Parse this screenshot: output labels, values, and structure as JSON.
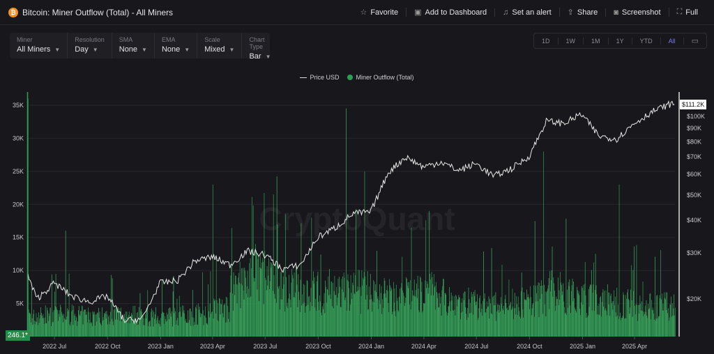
{
  "header": {
    "coin_icon": "bitcoin-icon",
    "title": "Bitcoin: Miner Outflow (Total) - All Miners",
    "actions": [
      {
        "label": "Favorite",
        "icon": "star-icon"
      },
      {
        "label": "Add to Dashboard",
        "icon": "folder-plus-icon"
      },
      {
        "label": "Set an alert",
        "icon": "bell-icon"
      },
      {
        "label": "Share",
        "icon": "share-icon"
      },
      {
        "label": "Screenshot",
        "icon": "camera-icon"
      },
      {
        "label": "Full",
        "icon": "fullscreen-icon"
      }
    ]
  },
  "controls": [
    {
      "label": "Miner",
      "value": "All Miners"
    },
    {
      "label": "Resolution",
      "value": "Day"
    },
    {
      "label": "SMA",
      "value": "None"
    },
    {
      "label": "EMA",
      "value": "None"
    },
    {
      "label": "Scale",
      "value": "Mixed"
    },
    {
      "label": "Chart Type",
      "value": "Bar"
    }
  ],
  "ranges": [
    "1D",
    "1W",
    "1M",
    "1Y",
    "YTD",
    "All"
  ],
  "active_range": "All",
  "legend": {
    "price": "Price USD",
    "outflow": "Miner Outflow (Total)"
  },
  "watermark": "CryptoQuant",
  "current_outflow": "246.1*",
  "current_price": "$111.2K",
  "colors": {
    "bar": "#2f9e55",
    "price": "#e8e8e8",
    "accent": "#7b7bf0"
  },
  "chart_data": {
    "type": "bar",
    "title": "Bitcoin: Miner Outflow (Total) - All Miners",
    "left_ticks": [
      "5K",
      "10K",
      "15K",
      "20K",
      "25K",
      "30K",
      "35K"
    ],
    "left_tick_values": [
      5000,
      10000,
      15000,
      20000,
      25000,
      30000,
      35000
    ],
    "right_ticks": [
      "$20K",
      "$30K",
      "$40K",
      "$50K",
      "$60K",
      "$70K",
      "$80K",
      "$90K",
      "$100K"
    ],
    "right_tick_values": [
      20000,
      30000,
      40000,
      50000,
      60000,
      70000,
      80000,
      90000,
      100000
    ],
    "x_ticks": [
      "2022 Jul",
      "2022 Oct",
      "2023 Jan",
      "2023 Apr",
      "2023 Jul",
      "2023 Oct",
      "2024 Jan",
      "2024 Apr",
      "2024 Jul",
      "2024 Oct",
      "2025 Jan",
      "2025 Apr"
    ],
    "x_range": [
      "2022-05-16",
      "2025-06-10"
    ],
    "outflow_ylim": [
      0,
      37000
    ],
    "price_scale": "log",
    "months": [
      "2022-05",
      "2022-06",
      "2022-07",
      "2022-08",
      "2022-09",
      "2022-10",
      "2022-11",
      "2022-12",
      "2023-01",
      "2023-02",
      "2023-03",
      "2023-04",
      "2023-05",
      "2023-06",
      "2023-07",
      "2023-08",
      "2023-09",
      "2023-10",
      "2023-11",
      "2023-12",
      "2024-01",
      "2024-02",
      "2024-03",
      "2024-04",
      "2024-05",
      "2024-06",
      "2024-07",
      "2024-08",
      "2024-09",
      "2024-10",
      "2024-11",
      "2024-12",
      "2025-01",
      "2025-02",
      "2025-03",
      "2025-04",
      "2025-05",
      "2025-06"
    ],
    "outflow_typical": [
      3200,
      3500,
      3600,
      3500,
      3400,
      3600,
      3700,
      3300,
      3400,
      3600,
      3800,
      4500,
      8500,
      10500,
      9000,
      8000,
      7500,
      7000,
      7500,
      7500,
      7000,
      6500,
      7000,
      7500,
      6500,
      5500,
      5000,
      5000,
      5500,
      6500,
      7500,
      6500,
      6000,
      5500,
      5500,
      5000,
      5000,
      5000
    ],
    "outflow_spikes": [
      {
        "date": "2022-05-16",
        "value": 36000
      },
      {
        "date": "2022-07-20",
        "value": 16000
      },
      {
        "date": "2023-04-01",
        "value": 23000
      },
      {
        "date": "2023-07-15",
        "value": 21500
      },
      {
        "date": "2023-11-18",
        "value": 34500
      },
      {
        "date": "2023-12-20",
        "value": 25000
      },
      {
        "date": "2024-04-10",
        "value": 19000
      },
      {
        "date": "2024-10-25",
        "value": 28000
      },
      {
        "date": "2025-03-05",
        "value": 23000
      }
    ],
    "price_usd": [
      30000,
      20000,
      23000,
      20500,
      19500,
      20500,
      16500,
      16800,
      23000,
      23500,
      28000,
      29000,
      27000,
      30500,
      29500,
      26000,
      27000,
      34500,
      37500,
      42500,
      43000,
      61000,
      70000,
      64000,
      67000,
      62000,
      66000,
      59000,
      63000,
      70000,
      96000,
      94000,
      102000,
      84000,
      82000,
      94000,
      104000,
      111200
    ]
  }
}
